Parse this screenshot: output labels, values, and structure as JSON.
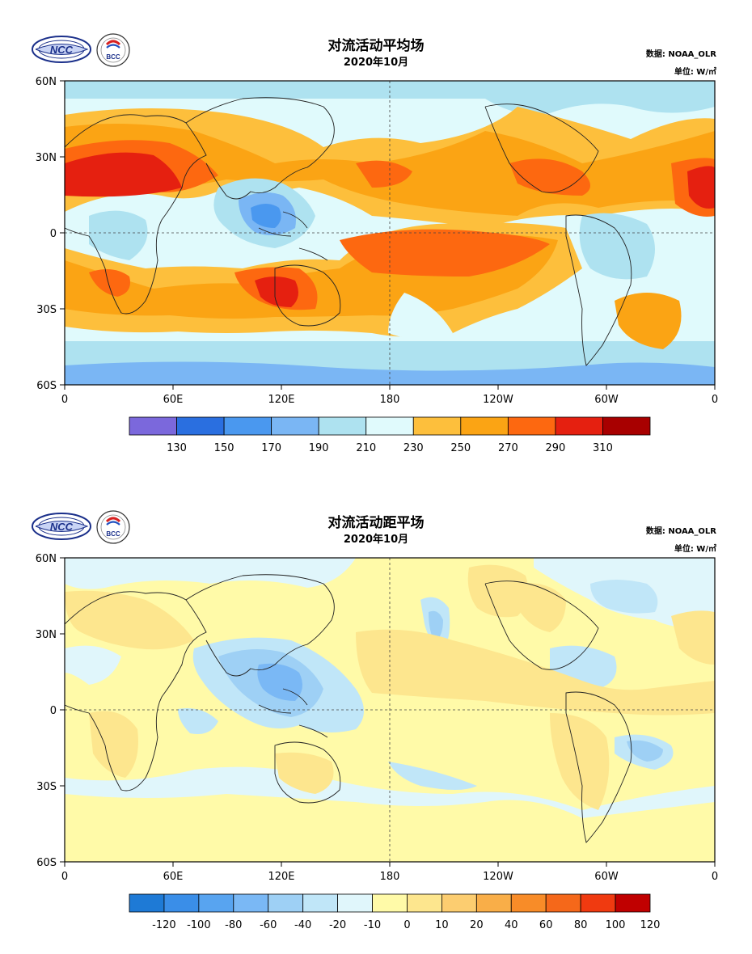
{
  "source_label": "数据: NOAA_OLR",
  "unit_label": "单位: W/㎡",
  "bcc_logo_text": "BCC",
  "ncc_logo_text": "NCC",
  "lat_labels": [
    "60N",
    "30N",
    "0",
    "30S",
    "60S"
  ],
  "lon_labels": [
    "0",
    "60E",
    "120E",
    "180",
    "120W",
    "60W",
    "0"
  ],
  "panels": [
    {
      "title": "对流活动平均场",
      "subtitle": "2020年10月",
      "colorbar": {
        "colors": [
          "#7b68dc",
          "#2a6fe0",
          "#4a98ef",
          "#7ab6f4",
          "#aee2f0",
          "#e0fafc",
          "#fdbf3c",
          "#fba414",
          "#fd6810",
          "#e52010",
          "#a80000"
        ],
        "labels": [
          "130",
          "150",
          "170",
          "190",
          "210",
          "230",
          "250",
          "270",
          "290",
          "310"
        ]
      }
    },
    {
      "title": "对流活动距平场",
      "subtitle": "2020年10月",
      "colorbar": {
        "colors": [
          "#1e7ad6",
          "#3a8ee8",
          "#58a4f0",
          "#7ab8f5",
          "#9ed0f5",
          "#c0e6f8",
          "#e0f6fb",
          "#fffaa8",
          "#fde68e",
          "#fccd70",
          "#f9ae48",
          "#f88c28",
          "#f5681a",
          "#f03a10",
          "#c00000"
        ],
        "labels": [
          "-120",
          "-100",
          "-80",
          "-60",
          "-40",
          "-20",
          "-10",
          "0",
          "10",
          "20",
          "40",
          "60",
          "80",
          "100",
          "120"
        ]
      }
    }
  ]
}
